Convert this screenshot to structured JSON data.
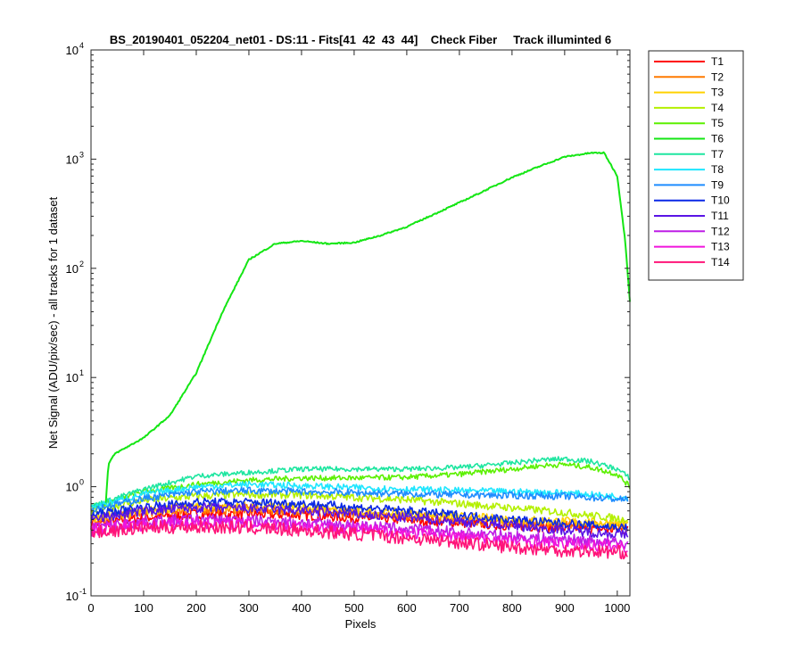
{
  "chart_data": {
    "type": "line",
    "title": "BS_20190401_052204_net01 - DS:11 - Fits[41  42  43  44]    Check Fiber     Track illuminted 6",
    "xlabel": "Pixels",
    "ylabel": "Net Signal (ADU/pix/sec) - all tracks for 1 dataset",
    "xlim": [
      0,
      1024
    ],
    "ylim": [
      0.1,
      10000
    ],
    "yscale": "log",
    "grid": false,
    "legend_position": "outside-right",
    "x_ticks": [
      "0",
      "100",
      "200",
      "300",
      "400",
      "500",
      "600",
      "700",
      "800",
      "900",
      "1000"
    ],
    "y_ticks": [
      {
        "base": "10",
        "exp": "-1"
      },
      {
        "base": "10",
        "exp": "0"
      },
      {
        "base": "10",
        "exp": "1"
      },
      {
        "base": "10",
        "exp": "2"
      },
      {
        "base": "10",
        "exp": "3"
      },
      {
        "base": "10",
        "exp": "4"
      }
    ],
    "series": [
      {
        "name": "T1",
        "color": "#ff0000",
        "x": [
          0,
          100,
          200,
          300,
          400,
          500,
          600,
          700,
          800,
          900,
          1020
        ],
        "y": [
          0.45,
          0.52,
          0.56,
          0.56,
          0.55,
          0.52,
          0.5,
          0.47,
          0.44,
          0.42,
          0.4
        ]
      },
      {
        "name": "T2",
        "color": "#ff7a00",
        "x": [
          0,
          100,
          200,
          300,
          400,
          500,
          600,
          700,
          800,
          900,
          1020
        ],
        "y": [
          0.5,
          0.58,
          0.62,
          0.62,
          0.6,
          0.57,
          0.54,
          0.5,
          0.47,
          0.45,
          0.43
        ]
      },
      {
        "name": "T3",
        "color": "#ffd200",
        "x": [
          0,
          100,
          200,
          300,
          400,
          500,
          600,
          700,
          800,
          900,
          1020
        ],
        "y": [
          0.52,
          0.6,
          0.66,
          0.66,
          0.65,
          0.6,
          0.57,
          0.53,
          0.5,
          0.48,
          0.46
        ]
      },
      {
        "name": "T4",
        "color": "#b4f000",
        "x": [
          0,
          100,
          200,
          300,
          400,
          500,
          600,
          700,
          800,
          900,
          1020
        ],
        "y": [
          0.6,
          0.75,
          0.82,
          0.85,
          0.84,
          0.8,
          0.76,
          0.7,
          0.64,
          0.58,
          0.5
        ]
      },
      {
        "name": "T5",
        "color": "#5cf000",
        "x": [
          0,
          100,
          200,
          300,
          400,
          500,
          600,
          700,
          800,
          850,
          900,
          950,
          1000,
          1024
        ],
        "y": [
          0.65,
          0.9,
          1.05,
          1.15,
          1.2,
          1.2,
          1.22,
          1.3,
          1.45,
          1.55,
          1.6,
          1.5,
          1.3,
          1.0
        ]
      },
      {
        "name": "T6",
        "color": "#14e614",
        "x": [
          0,
          28,
          33,
          45,
          100,
          150,
          200,
          250,
          300,
          350,
          400,
          450,
          500,
          550,
          600,
          650,
          700,
          750,
          800,
          850,
          900,
          950,
          975,
          1000,
          1015,
          1024
        ],
        "y": [
          0.66,
          0.7,
          1.6,
          2.0,
          2.8,
          4.5,
          11,
          40,
          120,
          168,
          178,
          168,
          172,
          200,
          240,
          310,
          400,
          520,
          680,
          850,
          1050,
          1140,
          1140,
          700,
          180,
          50
        ]
      },
      {
        "name": "T7",
        "color": "#1ee6a0",
        "x": [
          0,
          100,
          200,
          300,
          400,
          500,
          600,
          700,
          800,
          850,
          900,
          950,
          1000,
          1024
        ],
        "y": [
          0.66,
          0.95,
          1.25,
          1.35,
          1.45,
          1.45,
          1.45,
          1.5,
          1.65,
          1.75,
          1.8,
          1.7,
          1.45,
          1.2
        ]
      },
      {
        "name": "T8",
        "color": "#1ee6ff",
        "x": [
          0,
          100,
          200,
          300,
          400,
          500,
          600,
          700,
          800,
          900,
          1020
        ],
        "y": [
          0.65,
          0.85,
          1.0,
          1.05,
          1.02,
          0.98,
          0.95,
          0.92,
          0.9,
          0.88,
          0.8
        ]
      },
      {
        "name": "T9",
        "color": "#1e8cff",
        "x": [
          0,
          100,
          200,
          300,
          400,
          500,
          600,
          700,
          800,
          900,
          1020
        ],
        "y": [
          0.62,
          0.78,
          0.9,
          0.92,
          0.9,
          0.88,
          0.86,
          0.84,
          0.83,
          0.82,
          0.76
        ]
      },
      {
        "name": "T10",
        "color": "#0a28e6",
        "x": [
          0,
          100,
          200,
          300,
          400,
          500,
          600,
          700,
          800,
          900,
          1020
        ],
        "y": [
          0.55,
          0.65,
          0.72,
          0.72,
          0.7,
          0.65,
          0.6,
          0.55,
          0.5,
          0.46,
          0.42
        ]
      },
      {
        "name": "T11",
        "color": "#5a14e6",
        "x": [
          0,
          100,
          200,
          300,
          400,
          500,
          600,
          700,
          800,
          900,
          1020
        ],
        "y": [
          0.5,
          0.6,
          0.64,
          0.63,
          0.6,
          0.56,
          0.52,
          0.48,
          0.44,
          0.4,
          0.36
        ]
      },
      {
        "name": "T12",
        "color": "#be1ee6",
        "x": [
          0,
          100,
          200,
          300,
          400,
          500,
          600,
          700,
          800,
          900,
          1020
        ],
        "y": [
          0.42,
          0.48,
          0.5,
          0.49,
          0.47,
          0.44,
          0.41,
          0.38,
          0.35,
          0.33,
          0.3
        ]
      },
      {
        "name": "T13",
        "color": "#f014dc",
        "x": [
          0,
          100,
          200,
          300,
          400,
          500,
          600,
          700,
          800,
          900,
          1020
        ],
        "y": [
          0.4,
          0.45,
          0.47,
          0.46,
          0.44,
          0.41,
          0.38,
          0.35,
          0.32,
          0.3,
          0.28
        ]
      },
      {
        "name": "T14",
        "color": "#ff1478",
        "x": [
          0,
          100,
          200,
          300,
          400,
          500,
          600,
          700,
          800,
          900,
          1020
        ],
        "y": [
          0.38,
          0.42,
          0.43,
          0.42,
          0.4,
          0.37,
          0.34,
          0.31,
          0.28,
          0.26,
          0.25
        ]
      }
    ]
  }
}
